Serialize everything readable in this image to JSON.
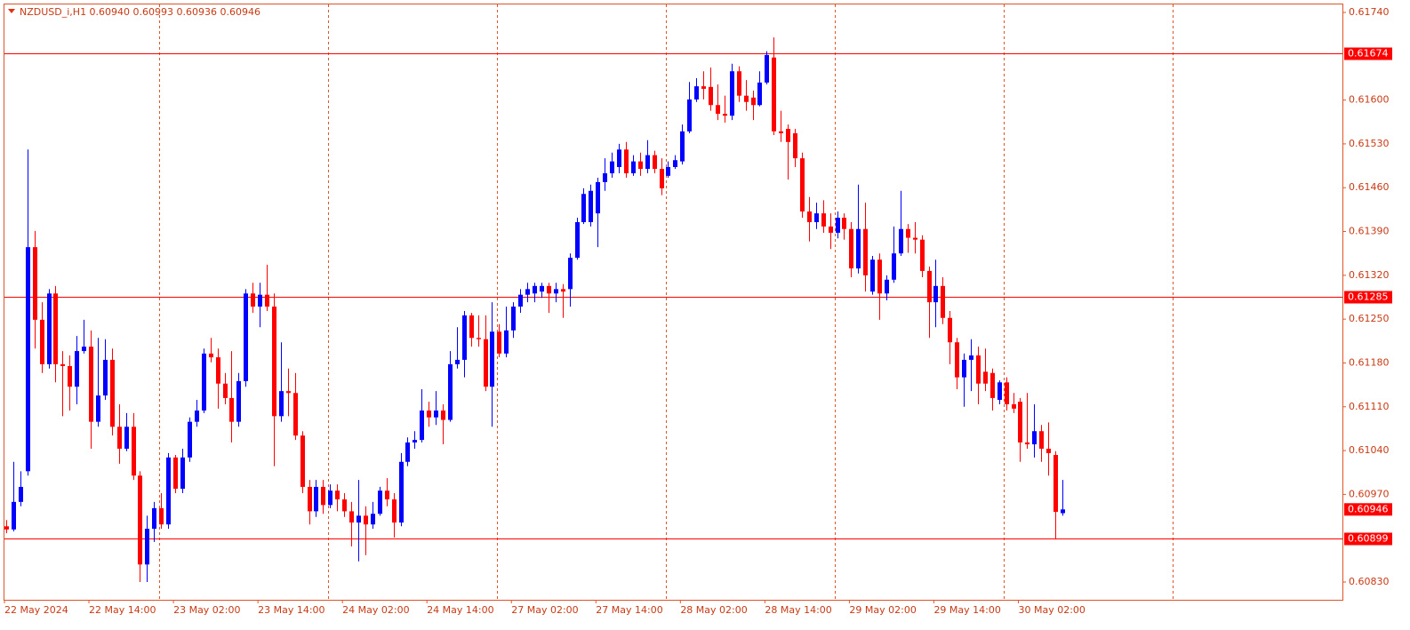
{
  "chart_data": {
    "type": "candlestick",
    "header": "NZDUSD_i,H1  0.60940 0.60993 0.60936 0.60946",
    "bull_color": "#0000ff",
    "bear_color": "#ff0000",
    "level_color": "#ff0000",
    "ylim": [
      0.6083,
      0.6174
    ],
    "yticks": [
      {
        "value": 0.6174,
        "label": "0.61740"
      },
      {
        "value": 0.616,
        "label": "0.61600"
      },
      {
        "value": 0.6153,
        "label": "0.61530"
      },
      {
        "value": 0.6146,
        "label": "0.61460"
      },
      {
        "value": 0.6139,
        "label": "0.61390"
      },
      {
        "value": 0.6132,
        "label": "0.61320"
      },
      {
        "value": 0.6125,
        "label": "0.61250"
      },
      {
        "value": 0.6118,
        "label": "0.61180"
      },
      {
        "value": 0.6111,
        "label": "0.61110"
      },
      {
        "value": 0.6104,
        "label": "0.61040"
      },
      {
        "value": 0.6097,
        "label": "0.60970"
      },
      {
        "value": 0.6083,
        "label": "0.60830"
      }
    ],
    "levels": [
      0.61674,
      0.61285,
      0.60899
    ],
    "current_price": 0.60946,
    "x_labels": [
      "22 May 2024",
      "22 May 14:00",
      "23 May 02:00",
      "23 May 14:00",
      "24 May 02:00",
      "24 May 14:00",
      "27 May 02:00",
      "27 May 14:00",
      "28 May 02:00",
      "28 May 14:00",
      "29 May 02:00",
      "29 May 14:00",
      "30 May 02:00"
    ],
    "open": [
      0.60919,
      0.60914,
      0.60958,
      0.61007,
      0.61365,
      0.61249,
      0.61178,
      0.61291,
      0.61178,
      0.61175,
      0.61142,
      0.61199,
      0.61206,
      0.61086,
      0.61128,
      0.61185,
      0.61078,
      0.61043,
      0.61078,
      0.61,
      0.60858,
      0.60915,
      0.60948,
      0.60922,
      0.61029,
      0.60979,
      0.61029,
      0.61086,
      0.61104,
      0.61195,
      0.61189,
      0.61147,
      0.61124,
      0.61086,
      0.61151,
      0.61291,
      0.6127,
      0.61289,
      0.6127,
      0.61095,
      0.61135,
      0.61132,
      0.61064,
      0.60982,
      0.60943,
      0.60982,
      0.60953,
      0.60976,
      0.60962,
      0.60943,
      0.60925,
      0.60936,
      0.60922,
      0.60939,
      0.60976,
      0.60962,
      0.60925,
      0.61022,
      0.61053,
      0.61057,
      0.61104,
      0.61093,
      0.61104,
      0.61089,
      0.61178,
      0.61185,
      0.61256,
      0.6122,
      0.61218,
      0.61142,
      0.6123,
      0.61195,
      0.61232,
      0.6127,
      0.61289,
      0.61291,
      0.61294,
      0.61303,
      0.61291,
      0.61298,
      0.61298,
      0.61348,
      0.61405,
      0.61405,
      0.61419,
      0.61469,
      0.61483,
      0.61493,
      0.61521,
      0.61483,
      0.61502,
      0.6149,
      0.61512,
      0.6149,
      0.61479,
      0.61493,
      0.61502,
      0.6155,
      0.61601,
      0.61622,
      0.61621,
      0.61592,
      0.61578,
      0.61575,
      0.61646,
      0.61607,
      0.61604,
      0.61592,
      0.61628,
      0.61668,
      0.6155,
      0.61554,
      0.61547,
      0.61507,
      0.61422,
      0.61405,
      0.61419,
      0.61398,
      0.61388,
      0.61412,
      0.61394,
      0.61331,
      0.61394,
      0.61294,
      0.61345,
      0.61291,
      0.61313,
      0.61355,
      0.61394,
      0.6138,
      0.61377,
      0.61327,
      0.61277,
      0.61303,
      0.61252,
      0.61213,
      0.61157,
      0.61185,
      0.61192,
      0.61166,
      0.61164,
      0.61121,
      0.61149,
      0.61114,
      0.61118,
      0.61053,
      0.6105,
      0.61071,
      0.61043,
      0.61033,
      0.6094
    ],
    "high": [
      0.60929,
      0.61022,
      0.61007,
      0.61521,
      0.61391,
      0.61277,
      0.61298,
      0.61303,
      0.61199,
      0.61192,
      0.61223,
      0.61249,
      0.61232,
      0.6122,
      0.61218,
      0.61203,
      0.61114,
      0.611,
      0.611,
      0.61007,
      0.60936,
      0.60958,
      0.60972,
      0.61036,
      0.61033,
      0.61043,
      0.61093,
      0.61121,
      0.61203,
      0.6122,
      0.61203,
      0.61164,
      0.61199,
      0.61164,
      0.61298,
      0.61308,
      0.61308,
      0.61337,
      0.61291,
      0.61213,
      0.61171,
      0.61164,
      0.61071,
      0.60993,
      0.60993,
      0.60993,
      0.60986,
      0.60986,
      0.60972,
      0.60958,
      0.60993,
      0.60951,
      0.60958,
      0.60982,
      0.60996,
      0.60972,
      0.61036,
      0.61061,
      0.61071,
      0.61138,
      0.61118,
      0.61135,
      0.61114,
      0.61199,
      0.61237,
      0.61263,
      0.6126,
      0.61256,
      0.61256,
      0.61277,
      0.61242,
      0.6127,
      0.61277,
      0.61298,
      0.61308,
      0.61308,
      0.61308,
      0.61308,
      0.61308,
      0.61306,
      0.61355,
      0.61412,
      0.61459,
      0.61465,
      0.61476,
      0.61507,
      0.61516,
      0.6153,
      0.61533,
      0.61512,
      0.61516,
      0.61536,
      0.61519,
      0.61507,
      0.61502,
      0.61512,
      0.61561,
      0.61629,
      0.61635,
      0.61646,
      0.61652,
      0.61625,
      0.61607,
      0.61658,
      0.61654,
      0.61632,
      0.61615,
      0.61646,
      0.61678,
      0.617,
      0.61583,
      0.61561,
      0.61554,
      0.61516,
      0.61445,
      0.61436,
      0.6144,
      0.61419,
      0.61422,
      0.61419,
      0.61405,
      0.61465,
      0.61436,
      0.61351,
      0.61355,
      0.6132,
      0.61398,
      0.61455,
      0.61402,
      0.61405,
      0.61384,
      0.61334,
      0.61345,
      0.61317,
      0.61263,
      0.6122,
      0.61195,
      0.61218,
      0.61206,
      0.61203,
      0.61171,
      0.61152,
      0.61157,
      0.61132,
      0.61124,
      0.61132,
      0.61114,
      0.61081,
      0.61085,
      0.61039,
      0.60993
    ],
    "low": [
      0.60908,
      0.60911,
      0.60951,
      0.61,
      0.61203,
      0.61164,
      0.61171,
      0.61149,
      0.61095,
      0.61104,
      0.61114,
      0.61195,
      0.61043,
      0.61078,
      0.61121,
      0.61064,
      0.61019,
      0.61039,
      0.60993,
      0.6083,
      0.6083,
      0.60894,
      0.60915,
      0.60915,
      0.60972,
      0.60972,
      0.61022,
      0.61078,
      0.611,
      0.61181,
      0.61107,
      0.61114,
      0.61053,
      0.61078,
      0.61142,
      0.6126,
      0.61237,
      0.61263,
      0.61015,
      0.61086,
      0.61095,
      0.61057,
      0.60972,
      0.60922,
      0.60934,
      0.60939,
      0.60948,
      0.60943,
      0.60934,
      0.60887,
      0.60863,
      0.60873,
      0.60915,
      0.60936,
      0.60951,
      0.60901,
      0.60919,
      0.61015,
      0.61043,
      0.61053,
      0.61078,
      0.61081,
      0.6105,
      0.61086,
      0.61171,
      0.61157,
      0.61206,
      0.61206,
      0.61135,
      0.61078,
      0.61189,
      0.61189,
      0.6122,
      0.6126,
      0.61277,
      0.61277,
      0.61284,
      0.6126,
      0.61277,
      0.61252,
      0.6127,
      0.61345,
      0.61402,
      0.61398,
      0.61365,
      0.61455,
      0.61476,
      0.61483,
      0.61476,
      0.61479,
      0.61479,
      0.61483,
      0.61483,
      0.61448,
      0.61476,
      0.6149,
      0.61497,
      0.61547,
      0.61597,
      0.61601,
      0.61583,
      0.61568,
      0.61564,
      0.61568,
      0.61597,
      0.61583,
      0.61568,
      0.6159,
      0.61625,
      0.61544,
      0.61533,
      0.61473,
      0.61493,
      0.61412,
      0.61374,
      0.61394,
      0.61388,
      0.61362,
      0.61379,
      0.61377,
      0.61317,
      0.61323,
      0.61294,
      0.61289,
      0.61249,
      0.6128,
      0.61308,
      0.61351,
      0.61356,
      0.61355,
      0.61317,
      0.6122,
      0.61237,
      0.61242,
      0.61178,
      0.61138,
      0.6111,
      0.61135,
      0.61114,
      0.61135,
      0.61104,
      0.61114,
      0.61104,
      0.611,
      0.61022,
      0.61043,
      0.61029,
      0.61022,
      0.61,
      0.60898,
      0.60936
    ],
    "close": [
      0.60914,
      0.60958,
      0.60982,
      0.61365,
      0.61249,
      0.61178,
      0.61291,
      0.61178,
      0.61175,
      0.61142,
      0.61199,
      0.61206,
      0.61086,
      0.61128,
      0.61185,
      0.61078,
      0.61043,
      0.61078,
      0.61,
      0.60858,
      0.60915,
      0.60948,
      0.60922,
      0.61029,
      0.60979,
      0.61029,
      0.61086,
      0.61104,
      0.61195,
      0.61189,
      0.61147,
      0.61124,
      0.61086,
      0.61151,
      0.61291,
      0.6127,
      0.61289,
      0.6127,
      0.61095,
      0.61135,
      0.61132,
      0.61064,
      0.60982,
      0.60943,
      0.60982,
      0.60953,
      0.60976,
      0.60962,
      0.60943,
      0.60925,
      0.60936,
      0.60922,
      0.60939,
      0.60976,
      0.60962,
      0.60925,
      0.61022,
      0.61053,
      0.61057,
      0.61104,
      0.61093,
      0.61104,
      0.61089,
      0.61178,
      0.61185,
      0.61256,
      0.6122,
      0.61218,
      0.61142,
      0.6123,
      0.61195,
      0.61232,
      0.6127,
      0.61289,
      0.61298,
      0.61303,
      0.61303,
      0.61291,
      0.61298,
      0.61294,
      0.61348,
      0.61405,
      0.6145,
      0.61455,
      0.61469,
      0.61483,
      0.61502,
      0.61521,
      0.61483,
      0.61502,
      0.6149,
      0.61512,
      0.6149,
      0.61459,
      0.61493,
      0.61504,
      0.6155,
      0.61601,
      0.61622,
      0.61618,
      0.61592,
      0.61578,
      0.61575,
      0.61646,
      0.61607,
      0.61597,
      0.61592,
      0.61628,
      0.61672,
      0.6155,
      0.61547,
      0.61533,
      0.61507,
      0.61422,
      0.61405,
      0.61419,
      0.61398,
      0.61388,
      0.61412,
      0.61394,
      0.61331,
      0.61394,
      0.6132,
      0.61345,
      0.61291,
      0.61313,
      0.61355,
      0.61394,
      0.6138,
      0.61377,
      0.61327,
      0.61277,
      0.61303,
      0.61252,
      0.61213,
      0.61157,
      0.61185,
      0.61192,
      0.61147,
      0.61147,
      0.61124,
      0.61149,
      0.61114,
      0.61107,
      0.61053,
      0.6105,
      0.61071,
      0.61043,
      0.61036,
      0.60942,
      0.60946
    ]
  }
}
